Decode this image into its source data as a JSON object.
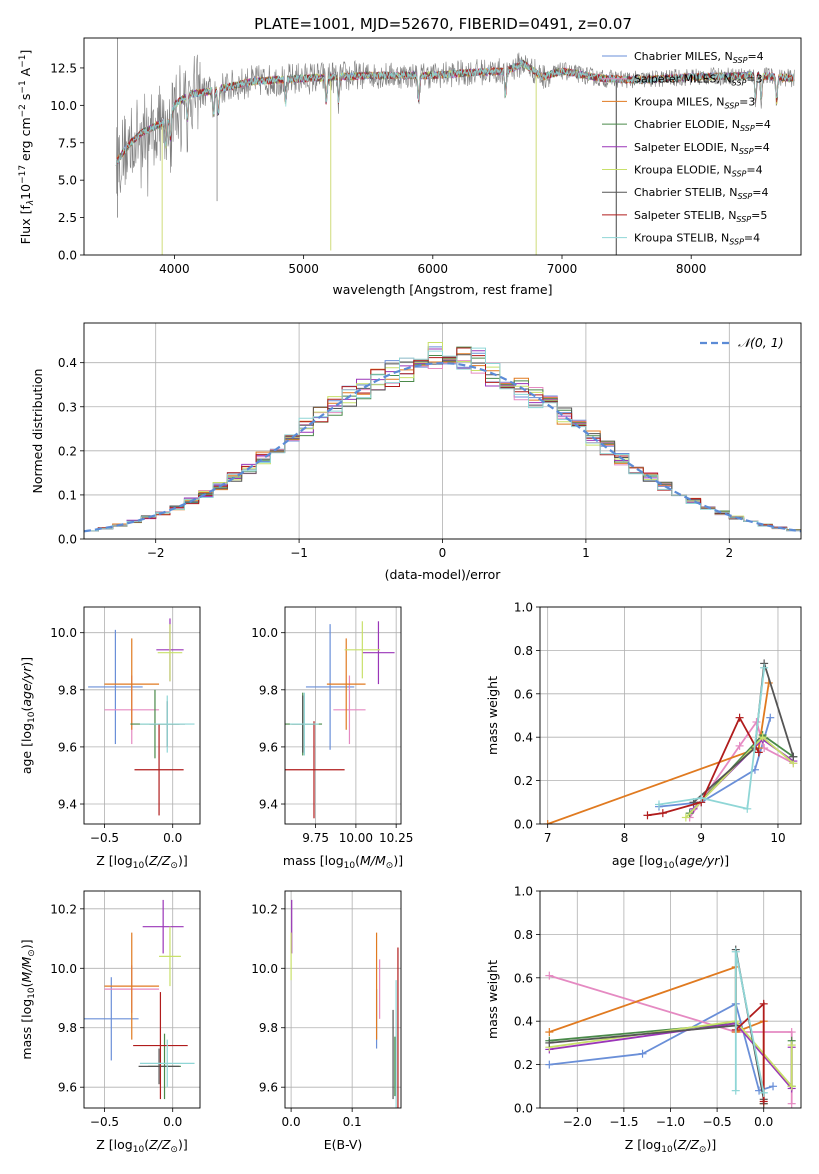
{
  "figure_title": "PLATE=1001, MJD=52670, FIBERID=0491, z=0.07",
  "colors": {
    "Chabrier MILES": "#6a8fd8",
    "Salpeter MILES": "#e58ac2",
    "Kroupa MILES": "#e07a20",
    "Chabrier ELODIE": "#4a8a4a",
    "Salpeter ELODIE": "#9a35b8",
    "Kroupa ELODIE": "#c8e06a",
    "Chabrier STELIB": "#555555",
    "Salpeter STELIB": "#b01c1c",
    "Kroupa STELIB": "#8fd6d6",
    "data": "#7f7f7f",
    "normal": "#5b8bd6"
  },
  "chart_data": [
    {
      "type": "line",
      "id": "spectrum",
      "title": "PLATE=1001, MJD=52670, FIBERID=0491, z=0.07",
      "xlabel": "wavelength [Angstrom, rest frame]",
      "ylabel": "Flux [f$_\\lambda$10$^{-17}$ erg cm$^{-2}$ s$^{-1}$ A$^{-1}$]",
      "ylabel_parts": [
        "Flux [f",
        "λ",
        "10",
        "−17",
        " erg cm",
        "−2",
        " s",
        "−1",
        " A",
        "−1",
        "]"
      ],
      "xlim": [
        3300,
        8850
      ],
      "ylim": [
        0,
        14.5
      ],
      "xticks": [
        4000,
        5000,
        6000,
        7000,
        8000
      ],
      "yticks": [
        0.0,
        2.5,
        5.0,
        7.5,
        10.0,
        12.5
      ],
      "ytick_labels": [
        "0.0",
        "2.5",
        "5.0",
        "7.5",
        "10.0",
        "12.5"
      ],
      "legend_position": "right",
      "series": [
        {
          "name": "Chabrier MILES, N",
          "sub": "SSP",
          "nssp": "=4"
        },
        {
          "name": "Salpeter MILES, N",
          "sub": "SSP",
          "nssp": "=3"
        },
        {
          "name": "Kroupa MILES, N",
          "sub": "SSP",
          "nssp": "=3"
        },
        {
          "name": "Chabrier ELODIE, N",
          "sub": "SSP",
          "nssp": "=4"
        },
        {
          "name": "Salpeter ELODIE, N",
          "sub": "SSP",
          "nssp": "=4"
        },
        {
          "name": "Kroupa ELODIE, N",
          "sub": "SSP",
          "nssp": "=4"
        },
        {
          "name": "Chabrier STELIB, N",
          "sub": "SSP",
          "nssp": "=4"
        },
        {
          "name": "Salpeter STELIB, N",
          "sub": "SSP",
          "nssp": "=5"
        },
        {
          "name": "Kroupa STELIB, N",
          "sub": "SSP",
          "nssp": "=4"
        }
      ],
      "continuum_knots": [
        [
          3550,
          6.2
        ],
        [
          3650,
          7.4
        ],
        [
          3750,
          8.2
        ],
        [
          3850,
          8.6
        ],
        [
          3950,
          9.0
        ],
        [
          4000,
          10.0
        ],
        [
          4100,
          10.7
        ],
        [
          4300,
          11.0
        ],
        [
          4600,
          11.6
        ],
        [
          5000,
          11.8
        ],
        [
          5500,
          12.0
        ],
        [
          6000,
          12.0
        ],
        [
          6300,
          12.2
        ],
        [
          6560,
          12.3
        ],
        [
          6700,
          12.8
        ],
        [
          6850,
          11.9
        ],
        [
          7000,
          12.3
        ],
        [
          7300,
          11.8
        ],
        [
          7600,
          11.7
        ],
        [
          8000,
          11.9
        ],
        [
          8500,
          12.0
        ],
        [
          8800,
          11.8
        ]
      ],
      "absorption_lines": [
        3934,
        3969,
        4101,
        4304,
        4340,
        4861,
        5175,
        5270,
        5890,
        6563,
        8498,
        8542,
        8662
      ],
      "spikes_down": [
        [
          3905,
          0.0
        ],
        [
          5210,
          0.3
        ],
        [
          6800,
          0.0
        ],
        [
          7420,
          0.0
        ]
      ]
    },
    {
      "type": "step",
      "id": "residuals",
      "xlabel": "(data-model)/error",
      "ylabel": "Normed distribution",
      "xlim": [
        -2.5,
        2.5
      ],
      "ylim": [
        0,
        0.49
      ],
      "xticks": [
        -2,
        -1,
        0,
        1,
        2
      ],
      "xtick_labels": [
        "−2",
        "−1",
        "0",
        "1",
        "2"
      ],
      "yticks": [
        0.0,
        0.1,
        0.2,
        0.3,
        0.4
      ],
      "ytick_labels": [
        "0.0",
        "0.1",
        "0.2",
        "0.3",
        "0.4"
      ],
      "grid": true,
      "legend_position": "top-right",
      "legend": "𝒩(0, 1)",
      "bin_width": 0.1
    },
    {
      "type": "scatter",
      "id": "age_vs_Z",
      "xlabel": "Z [log$_{10}$(Z/Z$_\\odot$)]",
      "ylabel": "age  [log$_{10}$(age/yr)]",
      "xlim": [
        -0.65,
        0.2
      ],
      "ylim": [
        9.33,
        10.09
      ],
      "xticks": [
        -0.5,
        0.0
      ],
      "xtick_labels": [
        "−0.5",
        "0.0"
      ],
      "yticks": [
        9.4,
        9.6,
        9.8,
        10.0
      ],
      "ytick_labels": [
        "9.4",
        "9.6",
        "9.8",
        "10.0"
      ],
      "grid": true,
      "points": [
        {
          "model": "Chabrier MILES",
          "x": -0.42,
          "xerr": 0.2,
          "y": 9.81,
          "yerr": 0.2
        },
        {
          "model": "Salpeter MILES",
          "x": -0.3,
          "xerr": 0.2,
          "y": 9.73,
          "yerr": 0.12
        },
        {
          "model": "Kroupa MILES",
          "x": -0.3,
          "xerr": 0.2,
          "y": 9.82,
          "yerr": 0.16
        },
        {
          "model": "Chabrier ELODIE",
          "x": -0.13,
          "xerr": 0.18,
          "y": 9.68,
          "yerr": 0.12
        },
        {
          "model": "Salpeter ELODIE",
          "x": -0.02,
          "xerr": 0.1,
          "y": 9.94,
          "yerr": 0.11
        },
        {
          "model": "Kroupa ELODIE",
          "x": -0.02,
          "xerr": 0.09,
          "y": 9.93,
          "yerr": 0.1
        },
        {
          "model": "Chabrier STELIB",
          "x": -0.04,
          "xerr": 0.13,
          "y": 9.68,
          "yerr": 0.08
        },
        {
          "model": "Salpeter STELIB",
          "x": -0.1,
          "xerr": 0.18,
          "y": 9.52,
          "yerr": 0.16
        },
        {
          "model": "Kroupa STELIB",
          "x": -0.04,
          "xerr": 0.2,
          "y": 9.68,
          "yerr": 0.1
        }
      ]
    },
    {
      "type": "scatter",
      "id": "age_vs_mass",
      "xlabel": "mass [log$_{10}$(M/M$_\\odot$)]",
      "ylabel": "",
      "xlim": [
        9.56,
        10.28
      ],
      "ylim": [
        9.33,
        10.09
      ],
      "xticks": [
        9.75,
        10.0,
        10.25
      ],
      "xtick_labels": [
        "9.75",
        "10.00",
        "10.25"
      ],
      "yticks": [
        9.4,
        9.6,
        9.8,
        10.0
      ],
      "ytick_labels": [
        "9.4",
        "9.6",
        "9.8",
        "10.0"
      ],
      "grid": true,
      "points": [
        {
          "model": "Chabrier MILES",
          "x": 9.84,
          "xerr": 0.15,
          "y": 9.81,
          "yerr": 0.22
        },
        {
          "model": "Salpeter MILES",
          "x": 9.96,
          "xerr": 0.1,
          "y": 9.73,
          "yerr": 0.12
        },
        {
          "model": "Kroupa MILES",
          "x": 9.94,
          "xerr": 0.12,
          "y": 9.82,
          "yerr": 0.16
        },
        {
          "model": "Chabrier ELODIE",
          "x": 9.67,
          "xerr": 0.12,
          "y": 9.68,
          "yerr": 0.11
        },
        {
          "model": "Salpeter ELODIE",
          "x": 10.14,
          "xerr": 0.1,
          "y": 9.93,
          "yerr": 0.11
        },
        {
          "model": "Kroupa ELODIE",
          "x": 10.04,
          "xerr": 0.11,
          "y": 9.94,
          "yerr": 0.1
        },
        {
          "model": "Chabrier STELIB",
          "x": 9.67,
          "xerr": 0.07,
          "y": 9.68,
          "yerr": 0.1
        },
        {
          "model": "Salpeter STELIB",
          "x": 9.74,
          "xerr": 0.19,
          "y": 9.52,
          "yerr": 0.17
        },
        {
          "model": "Kroupa STELIB",
          "x": 9.68,
          "xerr": 0.09,
          "y": 9.68,
          "yerr": 0.11
        }
      ]
    },
    {
      "type": "line",
      "id": "massweight_vs_age",
      "xlabel": "age  [log$_{10}$(age/yr)]",
      "ylabel": "mass weight",
      "xlim": [
        6.9,
        10.3
      ],
      "ylim": [
        0,
        1.0
      ],
      "xticks": [
        7,
        8,
        9,
        10
      ],
      "xtick_labels": [
        "7",
        "8",
        "9",
        "10"
      ],
      "yticks": [
        0.0,
        0.2,
        0.4,
        0.6,
        0.8,
        1.0
      ],
      "ytick_labels": [
        "0.0",
        "0.2",
        "0.4",
        "0.6",
        "0.8",
        "1.0"
      ],
      "grid": true,
      "series": [
        {
          "model": "Chabrier MILES",
          "x": [
            8.45,
            9.0,
            9.7,
            9.9
          ],
          "y": [
            0.08,
            0.1,
            0.25,
            0.49
          ]
        },
        {
          "model": "Salpeter MILES",
          "x": [
            8.85,
            9.5,
            9.72,
            9.82,
            10.2
          ],
          "y": [
            0.03,
            0.36,
            0.47,
            0.35,
            0.28
          ]
        },
        {
          "model": "Kroupa MILES",
          "x": [
            7.0,
            9.75,
            9.88
          ],
          "y": [
            0.0,
            0.35,
            0.65
          ]
        },
        {
          "model": "Chabrier ELODIE",
          "x": [
            8.85,
            9.8,
            10.2
          ],
          "y": [
            0.05,
            0.41,
            0.31
          ]
        },
        {
          "model": "Salpeter ELODIE",
          "x": [
            8.9,
            9.8,
            10.2
          ],
          "y": [
            0.07,
            0.39,
            0.29
          ]
        },
        {
          "model": "Kroupa ELODIE",
          "x": [
            8.8,
            9.8,
            10.2
          ],
          "y": [
            0.03,
            0.4,
            0.28
          ]
        },
        {
          "model": "Chabrier STELIB",
          "x": [
            8.9,
            9.7,
            9.82,
            10.2
          ],
          "y": [
            0.1,
            0.35,
            0.74,
            0.31
          ]
        },
        {
          "model": "Salpeter STELIB",
          "x": [
            8.3,
            8.5,
            9.0,
            9.5,
            9.75
          ],
          "y": [
            0.04,
            0.05,
            0.1,
            0.49,
            0.33
          ]
        },
        {
          "model": "Kroupa STELIB",
          "x": [
            8.45,
            9.0,
            9.6,
            9.82
          ],
          "y": [
            0.09,
            0.12,
            0.07,
            0.72
          ]
        }
      ]
    },
    {
      "type": "scatter",
      "id": "mass_vs_Z",
      "xlabel": "Z [log$_{10}$(Z/Z$_\\odot$)]",
      "ylabel": "mass [log$_{10}$(M/M$_\\odot$)]",
      "xlim": [
        -0.65,
        0.2
      ],
      "ylim": [
        9.53,
        10.26
      ],
      "xticks": [
        -0.5,
        0.0
      ],
      "xtick_labels": [
        "−0.5",
        "0.0"
      ],
      "yticks": [
        9.6,
        9.8,
        10.0,
        10.2
      ],
      "ytick_labels": [
        "9.6",
        "9.8",
        "10.0",
        "10.2"
      ],
      "grid": true,
      "points": [
        {
          "model": "Chabrier MILES",
          "x": -0.45,
          "xerr": 0.2,
          "y": 9.83,
          "yerr": 0.14
        },
        {
          "model": "Salpeter MILES",
          "x": -0.3,
          "xerr": 0.2,
          "y": 9.93,
          "yerr": 0.08
        },
        {
          "model": "Kroupa MILES",
          "x": -0.3,
          "xerr": 0.2,
          "y": 9.94,
          "yerr": 0.18
        },
        {
          "model": "Chabrier ELODIE",
          "x": -0.06,
          "xerr": 0.12,
          "y": 9.67,
          "yerr": 0.11
        },
        {
          "model": "Salpeter ELODIE",
          "x": -0.07,
          "xerr": 0.15,
          "y": 10.14,
          "yerr": 0.09
        },
        {
          "model": "Kroupa ELODIE",
          "x": -0.02,
          "xerr": 0.08,
          "y": 10.04,
          "yerr": 0.1
        },
        {
          "model": "Chabrier STELIB",
          "x": -0.1,
          "xerr": 0.15,
          "y": 9.67,
          "yerr": 0.06
        },
        {
          "model": "Salpeter STELIB",
          "x": -0.09,
          "xerr": 0.2,
          "y": 9.74,
          "yerr": 0.18
        },
        {
          "model": "Kroupa STELIB",
          "x": -0.04,
          "xerr": 0.2,
          "y": 9.68,
          "yerr": 0.08
        }
      ]
    },
    {
      "type": "scatter",
      "id": "mass_vs_EBV",
      "xlabel": "E(B-V)",
      "ylabel": "",
      "xlim": [
        -0.01,
        0.18
      ],
      "ylim": [
        9.53,
        10.26
      ],
      "xticks": [
        0.0,
        0.1
      ],
      "xtick_labels": [
        "0.0",
        "0.1"
      ],
      "yticks": [
        9.6,
        9.8,
        10.0,
        10.2
      ],
      "ytick_labels": [
        "9.6",
        "9.8",
        "10.0",
        "10.2"
      ],
      "grid": true,
      "points": [
        {
          "model": "Chabrier MILES",
          "x": 0.14,
          "y": 9.83,
          "yerr": 0.1
        },
        {
          "model": "Salpeter MILES",
          "x": 0.145,
          "y": 9.93,
          "yerr": 0.1
        },
        {
          "model": "Kroupa MILES",
          "x": 0.14,
          "y": 9.94,
          "yerr": 0.18
        },
        {
          "model": "Chabrier ELODIE",
          "x": 0.17,
          "y": 9.67,
          "yerr": 0.1
        },
        {
          "model": "Salpeter ELODIE",
          "x": 0.001,
          "y": 10.14,
          "yerr": 0.09
        },
        {
          "model": "Kroupa ELODIE",
          "x": 0.0,
          "y": 10.04,
          "yerr": 0.08
        },
        {
          "model": "Chabrier STELIB",
          "x": 0.167,
          "y": 9.71,
          "yerr": 0.15
        },
        {
          "model": "Salpeter STELIB",
          "x": 0.175,
          "y": 9.74,
          "yerr": 0.33
        },
        {
          "model": "Kroupa STELIB",
          "x": 0.172,
          "y": 9.68,
          "yerr": 0.28
        }
      ]
    },
    {
      "type": "line",
      "id": "massweight_vs_Z",
      "xlabel": "Z [log$_{10}$(Z/Z$_\\odot$)]",
      "ylabel": "mass weight",
      "xlim": [
        -2.4,
        0.4
      ],
      "ylim": [
        0,
        1.0
      ],
      "xticks": [
        -2.0,
        -1.5,
        -1.0,
        -0.5,
        0.0
      ],
      "xtick_labels": [
        "−2.0",
        "−1.5",
        "−1.0",
        "−0.5",
        "0.0"
      ],
      "yticks": [
        0.0,
        0.2,
        0.4,
        0.6,
        0.8,
        1.0
      ],
      "ytick_labels": [
        "0.0",
        "0.2",
        "0.4",
        "0.6",
        "0.8",
        "1.0"
      ],
      "grid": true,
      "series": [
        {
          "model": "Chabrier MILES",
          "x": [
            -2.3,
            -1.3,
            -0.3,
            -0.05,
            0.1
          ],
          "y": [
            0.2,
            0.25,
            0.48,
            0.08,
            0.1
          ]
        },
        {
          "model": "Salpeter MILES",
          "x": [
            -2.3,
            -0.3,
            0.3,
            0.3
          ],
          "y": [
            0.61,
            0.35,
            0.35,
            0.02
          ]
        },
        {
          "model": "Kroupa MILES",
          "x": [
            -2.3,
            -0.3,
            -0.3,
            0.0,
            0.0
          ],
          "y": [
            0.35,
            0.65,
            0.35,
            0.4,
            0.02
          ]
        },
        {
          "model": "Chabrier ELODIE",
          "x": [
            -2.3,
            -0.3,
            0.3,
            0.3
          ],
          "y": [
            0.31,
            0.39,
            0.1,
            0.31
          ]
        },
        {
          "model": "Salpeter ELODIE",
          "x": [
            -2.3,
            -0.3,
            0.3,
            0.3
          ],
          "y": [
            0.27,
            0.39,
            0.09,
            0.28
          ]
        },
        {
          "model": "Kroupa ELODIE",
          "x": [
            -2.3,
            -0.3,
            0.3,
            0.3
          ],
          "y": [
            0.28,
            0.4,
            0.1,
            0.29
          ]
        },
        {
          "model": "Chabrier STELIB",
          "x": [
            -2.3,
            -0.3,
            -0.3,
            0.0,
            0.0
          ],
          "y": [
            0.3,
            0.38,
            0.73,
            0.04,
            0.02
          ]
        },
        {
          "model": "Salpeter STELIB",
          "x": [
            -0.3,
            0.0,
            0.0
          ],
          "y": [
            0.36,
            0.48,
            0.03
          ]
        },
        {
          "model": "Kroupa STELIB",
          "x": [
            -0.3,
            -0.3,
            0.0,
            0.0
          ],
          "y": [
            0.08,
            0.72,
            0.07,
            0.07
          ]
        }
      ]
    }
  ]
}
